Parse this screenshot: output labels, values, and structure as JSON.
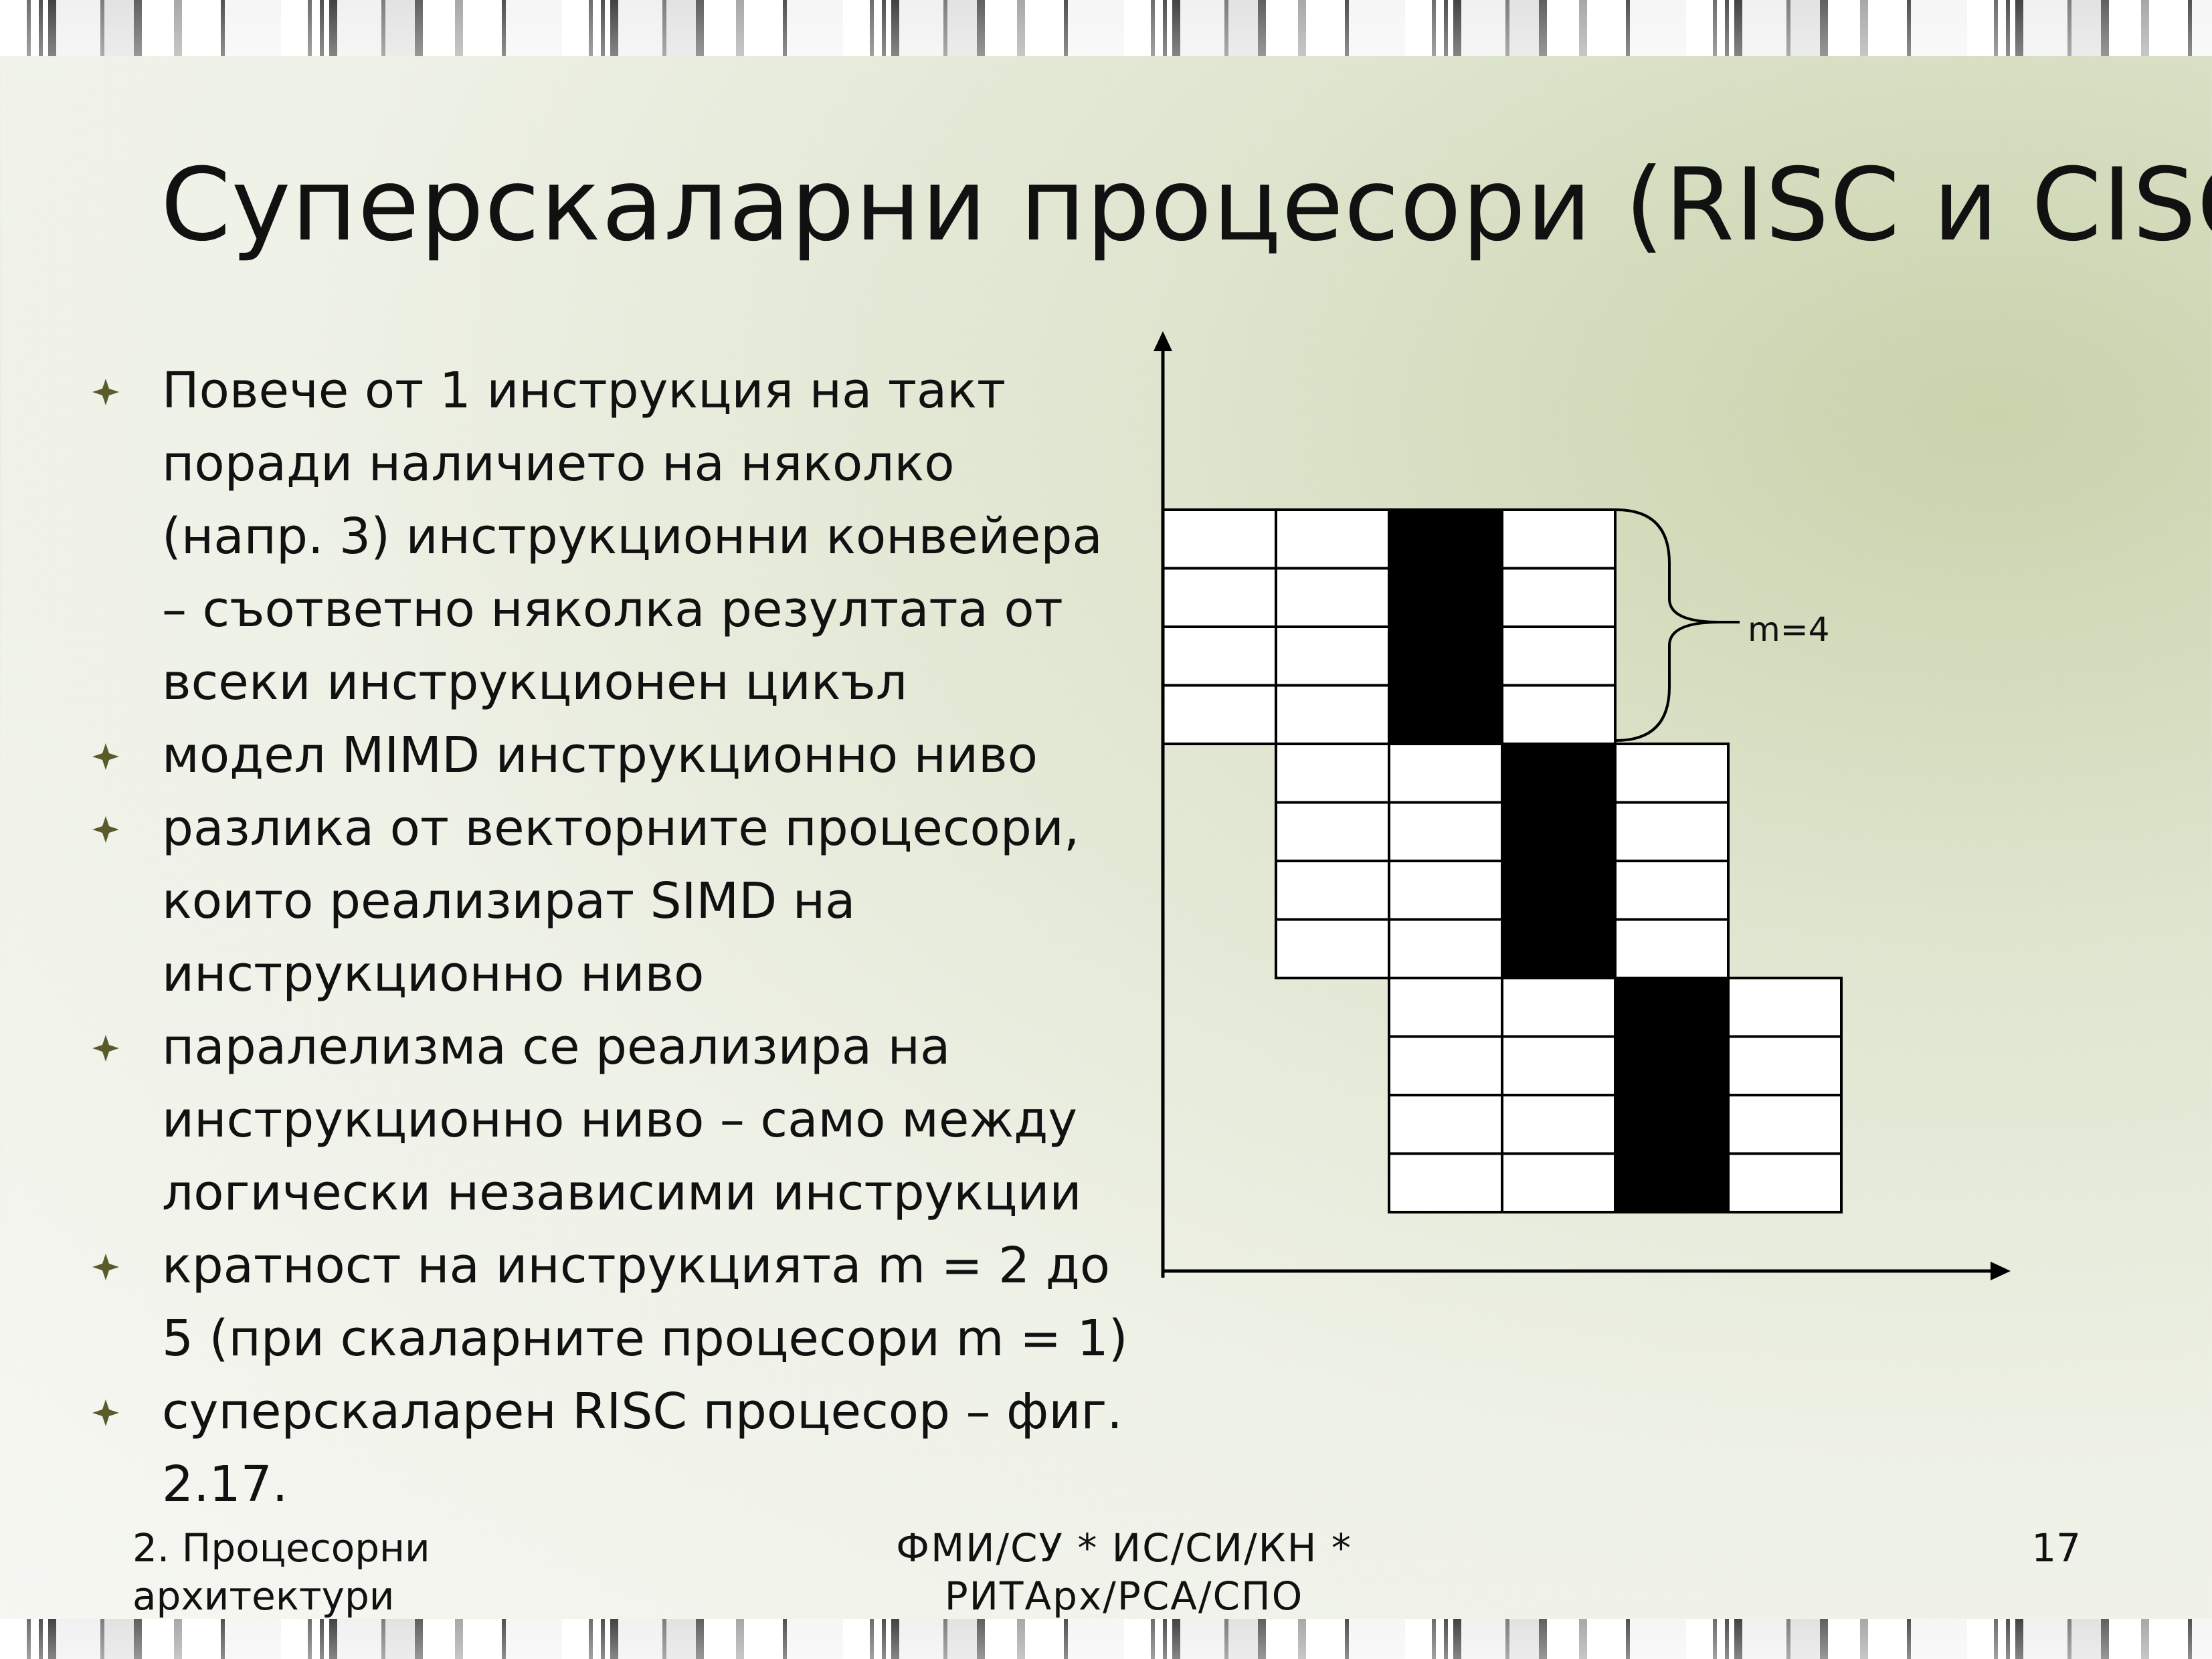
{
  "slide": {
    "title": "Суперскаларни процесори (RISC и CISC)",
    "bullets": [
      {
        "text": "Повече от 1 инструкция на такт поради наличието на няколко (напр. 3) инструкционни конвейера – съответно няколка резултата от всеки инструкционен цикъл"
      },
      {
        "text": "модел MIMD инструкционно ниво"
      },
      {
        "text": "разлика от векторните процесори, които реализират SIMD на инструкционно ниво"
      },
      {
        "text": "паралелизма се реализира на инструкционно ниво – само между логически независими инструкции"
      },
      {
        "text": "кратност на инструкцията m = 2 до 5 (при скаларните процесори m = 1)"
      },
      {
        "text": "суперскаларен RISC процесор – фиг. 2.17."
      }
    ],
    "bullet_icon": "four-point-star-bullet-icon",
    "diagram": {
      "label": "m=4",
      "stages": 4,
      "pipelines": 4,
      "groups": 3
    },
    "footer": {
      "left": "2. Процесорни архитектури",
      "center": "ФМИ/СУ  *  ИС/СИ/КН  * РИТАрх/РСА/СПО",
      "page": "17"
    }
  }
}
